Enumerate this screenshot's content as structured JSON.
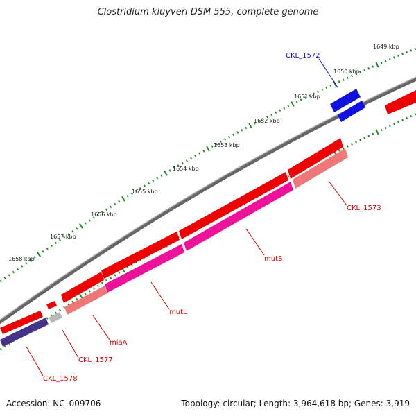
{
  "title": "Clostridium kluyveri DSM 555, complete genome",
  "footer": {
    "accession": "Accession: NC_009706",
    "topology": "Topology: circular; Length: 3,964,618 bp; Genes: 3,919"
  },
  "colors": {
    "backbone": "#777777",
    "tick": "#228822",
    "forward_gene": "#ee0000",
    "rrna": "#1010e0",
    "highlight_pink": "#ee1199",
    "light_red": "#ee7777",
    "dark_blue": "#443388",
    "grey_gene": "#b8b8b8",
    "label_red": "#dd0000",
    "label_blue": "#1010cc"
  },
  "kbp_ticks": [
    "1649 kbp",
    "1650 kbp",
    "1651 kbp",
    "1652 kbp",
    "1653 kbp",
    "1654 kbp",
    "1655 kbp",
    "1656 kbp",
    "1657 kbp",
    "1658 kbp"
  ],
  "gene_labels": [
    "CKL_1572",
    "CKL_1573",
    "mutS",
    "mutL",
    "miaA",
    "CKL_1577",
    "CKL_1578"
  ]
}
